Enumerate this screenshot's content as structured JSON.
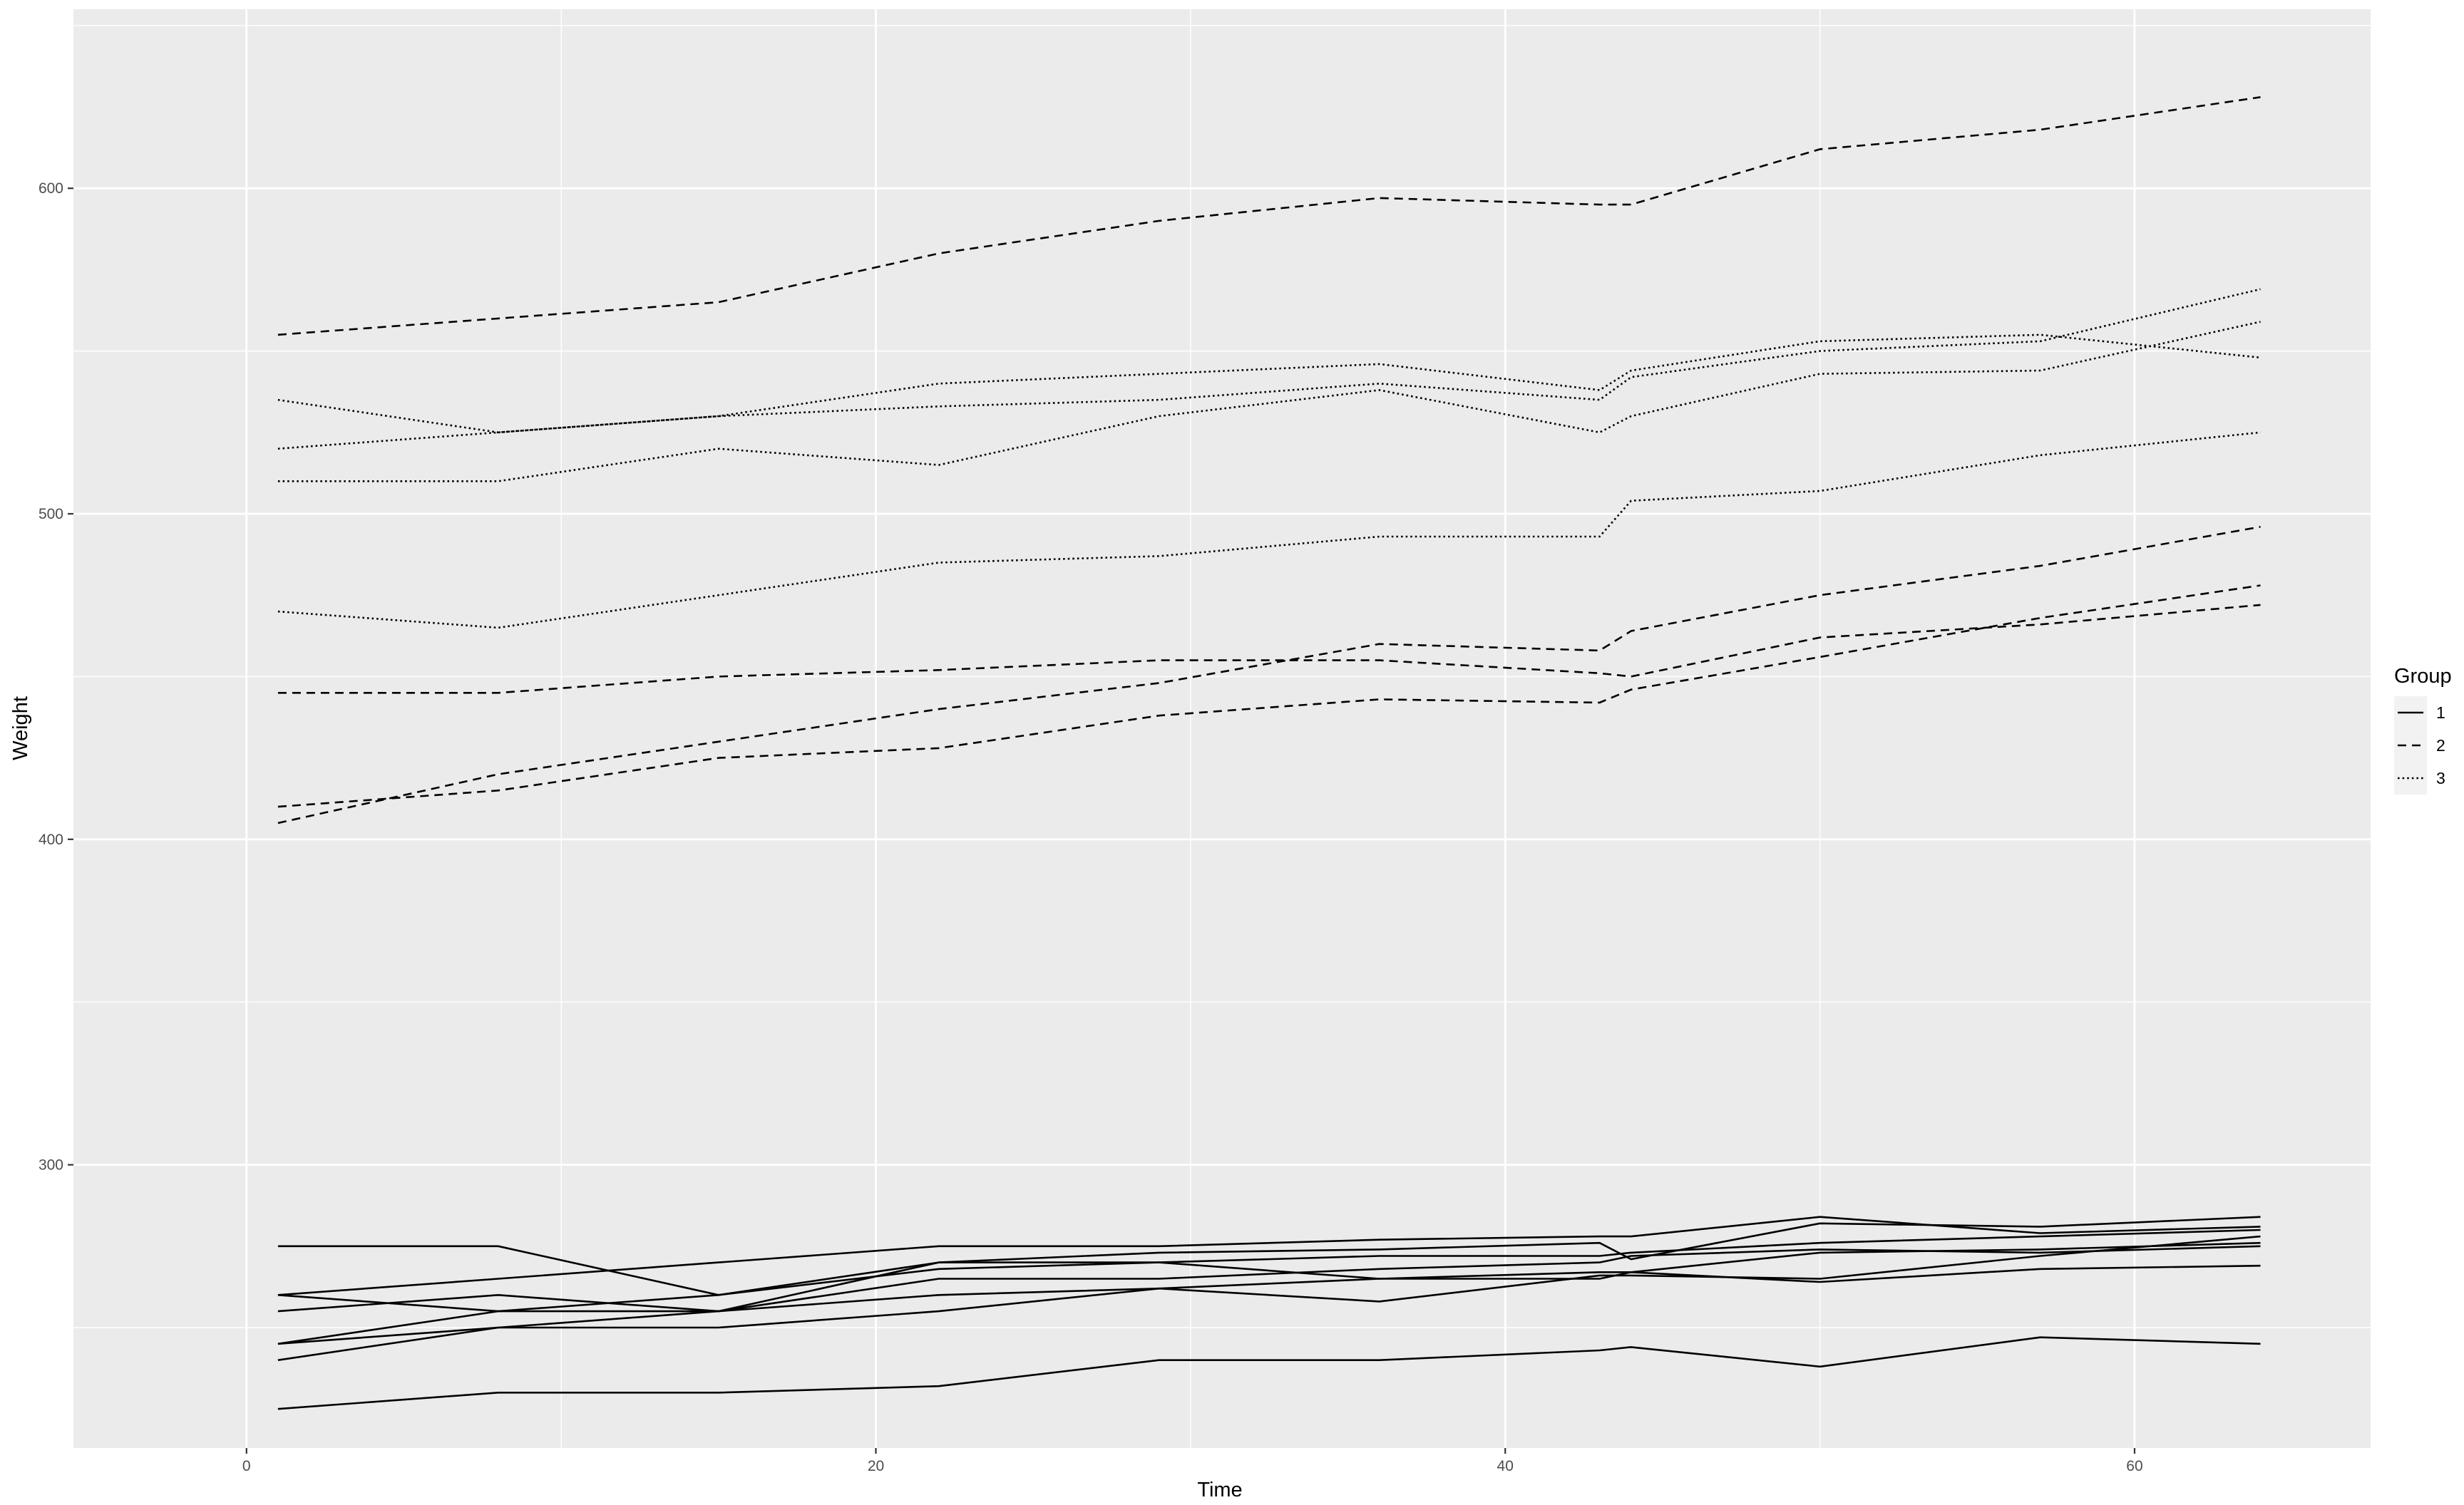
{
  "chart_data": {
    "type": "line",
    "title": "",
    "xlabel": "Time",
    "ylabel": "Weight",
    "xlim": [
      -5.5,
      67.5
    ],
    "ylim": [
      213,
      655
    ],
    "x_ticks": [
      0,
      20,
      40,
      60
    ],
    "y_ticks": [
      300,
      400,
      500,
      600
    ],
    "grid": true,
    "legend": {
      "title": "Group",
      "position": "right",
      "entries": [
        {
          "label": "1",
          "dash": "solid"
        },
        {
          "label": "2",
          "dash": "dashed"
        },
        {
          "label": "3",
          "dotted": true,
          "dash": "dotted"
        }
      ]
    },
    "x": [
      1,
      8,
      15,
      22,
      29,
      36,
      43,
      44,
      50,
      57,
      64
    ],
    "series": [
      {
        "group": "1",
        "values": [
          240,
          250,
          255,
          260,
          262,
          258,
          266,
          266,
          265,
          272,
          278
        ]
      },
      {
        "group": "1",
        "values": [
          225,
          230,
          230,
          232,
          240,
          240,
          243,
          244,
          238,
          247,
          245
        ]
      },
      {
        "group": "1",
        "values": [
          245,
          250,
          250,
          255,
          262,
          265,
          267,
          267,
          264,
          268,
          269
        ]
      },
      {
        "group": "1",
        "values": [
          260,
          255,
          255,
          265,
          265,
          268,
          270,
          272,
          274,
          273,
          275
        ]
      },
      {
        "group": "1",
        "values": [
          255,
          260,
          255,
          270,
          270,
          265,
          265,
          267,
          273,
          274,
          276
        ]
      },
      {
        "group": "1",
        "values": [
          260,
          265,
          270,
          275,
          275,
          277,
          278,
          278,
          284,
          279,
          281
        ]
      },
      {
        "group": "1",
        "values": [
          275,
          275,
          260,
          270,
          273,
          274,
          276,
          271,
          282,
          281,
          284
        ]
      },
      {
        "group": "1",
        "values": [
          245,
          255,
          260,
          268,
          270,
          272,
          272,
          273,
          276,
          278,
          280
        ]
      },
      {
        "group": "2",
        "values": [
          410,
          415,
          425,
          428,
          438,
          443,
          442,
          446,
          456,
          468,
          478
        ]
      },
      {
        "group": "2",
        "values": [
          405,
          420,
          430,
          440,
          448,
          460,
          458,
          464,
          475,
          484,
          496
        ]
      },
      {
        "group": "2",
        "values": [
          445,
          445,
          450,
          452,
          455,
          455,
          451,
          450,
          462,
          466,
          472
        ]
      },
      {
        "group": "2",
        "values": [
          555,
          560,
          565,
          580,
          590,
          597,
          595,
          595,
          612,
          618,
          628
        ]
      },
      {
        "group": "3",
        "values": [
          470,
          465,
          475,
          485,
          487,
          493,
          493,
          504,
          507,
          518,
          525
        ]
      },
      {
        "group": "3",
        "values": [
          535,
          525,
          530,
          540,
          543,
          546,
          538,
          544,
          553,
          555,
          548
        ]
      },
      {
        "group": "3",
        "values": [
          520,
          525,
          530,
          533,
          535,
          540,
          535,
          542,
          550,
          553,
          569
        ]
      },
      {
        "group": "3",
        "values": [
          510,
          510,
          520,
          515,
          530,
          538,
          525,
          530,
          543,
          544,
          559
        ]
      }
    ]
  }
}
